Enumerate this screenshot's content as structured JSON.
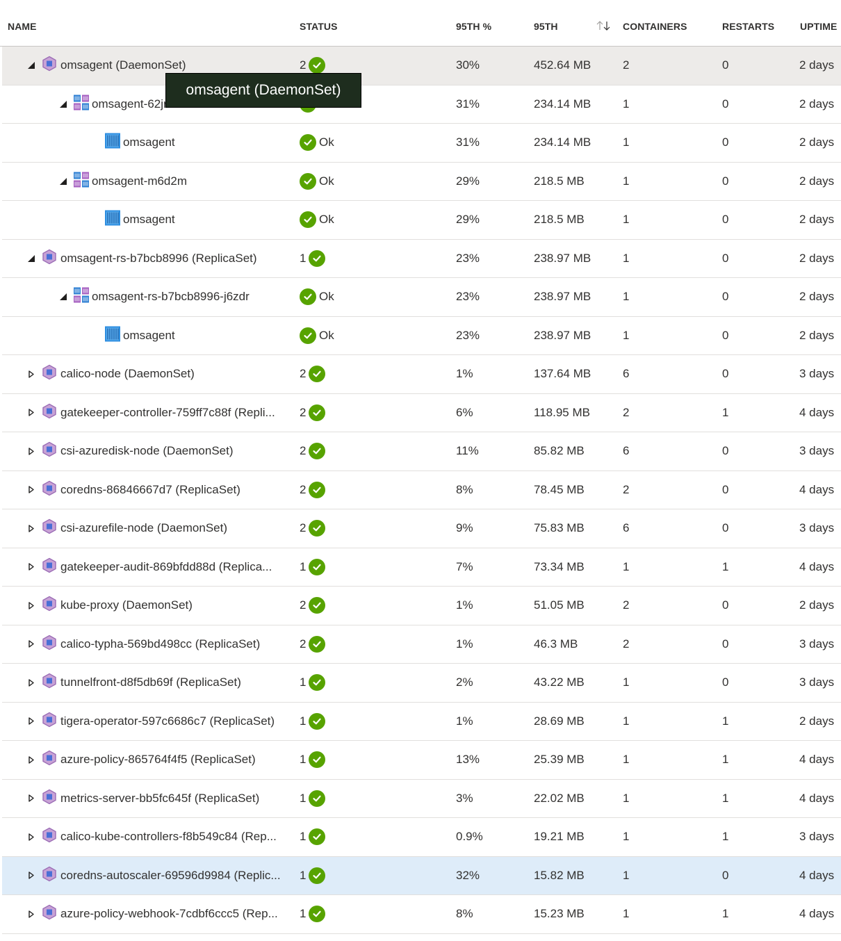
{
  "columns": {
    "name": "NAME",
    "status": "STATUS",
    "p95pct": "95TH %",
    "p95": "95TH",
    "containers": "CONTAINERS",
    "restarts": "RESTARTS",
    "uptime": "UPTIME"
  },
  "tooltip": "omsagent (DaemonSet)",
  "colors": {
    "ok_green": "#57a300",
    "row_hover": "#edebe9",
    "row_selected": "#deecf9",
    "tooltip_bg": "#1e2d1e"
  },
  "rows": [
    {
      "level": 0,
      "expand": "expanded",
      "icon": "controller-icon",
      "name": "omsagent (DaemonSet)",
      "status_count": "2",
      "status_text": "",
      "pct": "30%",
      "mem": "452.64 MB",
      "containers": "2",
      "restarts": "0",
      "uptime": "2 days",
      "state": "hover"
    },
    {
      "level": 1,
      "expand": "expanded",
      "icon": "pod-icon",
      "name": "omsagent-62jrc",
      "status_count": "",
      "status_text": "Ok",
      "pct": "31%",
      "mem": "234.14 MB",
      "containers": "1",
      "restarts": "0",
      "uptime": "2 days",
      "state": ""
    },
    {
      "level": 2,
      "expand": "none",
      "icon": "container-icon",
      "name": "omsagent",
      "status_count": "",
      "status_text": "Ok",
      "pct": "31%",
      "mem": "234.14 MB",
      "containers": "1",
      "restarts": "0",
      "uptime": "2 days",
      "state": ""
    },
    {
      "level": 1,
      "expand": "expanded",
      "icon": "pod-icon",
      "name": "omsagent-m6d2m",
      "status_count": "",
      "status_text": "Ok",
      "pct": "29%",
      "mem": "218.5 MB",
      "containers": "1",
      "restarts": "0",
      "uptime": "2 days",
      "state": ""
    },
    {
      "level": 2,
      "expand": "none",
      "icon": "container-icon",
      "name": "omsagent",
      "status_count": "",
      "status_text": "Ok",
      "pct": "29%",
      "mem": "218.5 MB",
      "containers": "1",
      "restarts": "0",
      "uptime": "2 days",
      "state": ""
    },
    {
      "level": 0,
      "expand": "expanded",
      "icon": "controller-icon",
      "name": "omsagent-rs-b7bcb8996 (ReplicaSet)",
      "status_count": "1",
      "status_text": "",
      "pct": "23%",
      "mem": "238.97 MB",
      "containers": "1",
      "restarts": "0",
      "uptime": "2 days",
      "state": ""
    },
    {
      "level": 1,
      "expand": "expanded",
      "icon": "pod-icon",
      "name": "omsagent-rs-b7bcb8996-j6zdr",
      "status_count": "",
      "status_text": "Ok",
      "pct": "23%",
      "mem": "238.97 MB",
      "containers": "1",
      "restarts": "0",
      "uptime": "2 days",
      "state": ""
    },
    {
      "level": 2,
      "expand": "none",
      "icon": "container-icon",
      "name": "omsagent",
      "status_count": "",
      "status_text": "Ok",
      "pct": "23%",
      "mem": "238.97 MB",
      "containers": "1",
      "restarts": "0",
      "uptime": "2 days",
      "state": ""
    },
    {
      "level": 0,
      "expand": "collapsed",
      "icon": "controller-icon",
      "name": "calico-node (DaemonSet)",
      "status_count": "2",
      "status_text": "",
      "pct": "1%",
      "mem": "137.64 MB",
      "containers": "6",
      "restarts": "0",
      "uptime": "3 days",
      "state": ""
    },
    {
      "level": 0,
      "expand": "collapsed",
      "icon": "controller-icon",
      "name": "gatekeeper-controller-759ff7c88f (Repli...",
      "status_count": "2",
      "status_text": "",
      "pct": "6%",
      "mem": "118.95 MB",
      "containers": "2",
      "restarts": "1",
      "uptime": "4 days",
      "state": ""
    },
    {
      "level": 0,
      "expand": "collapsed",
      "icon": "controller-icon",
      "name": "csi-azuredisk-node (DaemonSet)",
      "status_count": "2",
      "status_text": "",
      "pct": "11%",
      "mem": "85.82 MB",
      "containers": "6",
      "restarts": "0",
      "uptime": "3 days",
      "state": ""
    },
    {
      "level": 0,
      "expand": "collapsed",
      "icon": "controller-icon",
      "name": "coredns-86846667d7 (ReplicaSet)",
      "status_count": "2",
      "status_text": "",
      "pct": "8%",
      "mem": "78.45 MB",
      "containers": "2",
      "restarts": "0",
      "uptime": "4 days",
      "state": ""
    },
    {
      "level": 0,
      "expand": "collapsed",
      "icon": "controller-icon",
      "name": "csi-azurefile-node (DaemonSet)",
      "status_count": "2",
      "status_text": "",
      "pct": "9%",
      "mem": "75.83 MB",
      "containers": "6",
      "restarts": "0",
      "uptime": "3 days",
      "state": ""
    },
    {
      "level": 0,
      "expand": "collapsed",
      "icon": "controller-icon",
      "name": "gatekeeper-audit-869bfdd88d (Replica...",
      "status_count": "1",
      "status_text": "",
      "pct": "7%",
      "mem": "73.34 MB",
      "containers": "1",
      "restarts": "1",
      "uptime": "4 days",
      "state": ""
    },
    {
      "level": 0,
      "expand": "collapsed",
      "icon": "controller-icon",
      "name": "kube-proxy (DaemonSet)",
      "status_count": "2",
      "status_text": "",
      "pct": "1%",
      "mem": "51.05 MB",
      "containers": "2",
      "restarts": "0",
      "uptime": "2 days",
      "state": ""
    },
    {
      "level": 0,
      "expand": "collapsed",
      "icon": "controller-icon",
      "name": "calico-typha-569bd498cc (ReplicaSet)",
      "status_count": "2",
      "status_text": "",
      "pct": "1%",
      "mem": "46.3 MB",
      "containers": "2",
      "restarts": "0",
      "uptime": "3 days",
      "state": ""
    },
    {
      "level": 0,
      "expand": "collapsed",
      "icon": "controller-icon",
      "name": "tunnelfront-d8f5db69f (ReplicaSet)",
      "status_count": "1",
      "status_text": "",
      "pct": "2%",
      "mem": "43.22 MB",
      "containers": "1",
      "restarts": "0",
      "uptime": "3 days",
      "state": ""
    },
    {
      "level": 0,
      "expand": "collapsed",
      "icon": "controller-icon",
      "name": "tigera-operator-597c6686c7 (ReplicaSet)",
      "status_count": "1",
      "status_text": "",
      "pct": "1%",
      "mem": "28.69 MB",
      "containers": "1",
      "restarts": "1",
      "uptime": "2 days",
      "state": ""
    },
    {
      "level": 0,
      "expand": "collapsed",
      "icon": "controller-icon",
      "name": "azure-policy-865764f4f5 (ReplicaSet)",
      "status_count": "1",
      "status_text": "",
      "pct": "13%",
      "mem": "25.39 MB",
      "containers": "1",
      "restarts": "1",
      "uptime": "4 days",
      "state": ""
    },
    {
      "level": 0,
      "expand": "collapsed",
      "icon": "controller-icon",
      "name": "metrics-server-bb5fc645f (ReplicaSet)",
      "status_count": "1",
      "status_text": "",
      "pct": "3%",
      "mem": "22.02 MB",
      "containers": "1",
      "restarts": "1",
      "uptime": "4 days",
      "state": ""
    },
    {
      "level": 0,
      "expand": "collapsed",
      "icon": "controller-icon",
      "name": "calico-kube-controllers-f8b549c84 (Rep...",
      "status_count": "1",
      "status_text": "",
      "pct": "0.9%",
      "mem": "19.21 MB",
      "containers": "1",
      "restarts": "1",
      "uptime": "3 days",
      "state": ""
    },
    {
      "level": 0,
      "expand": "collapsed",
      "icon": "controller-icon",
      "name": "coredns-autoscaler-69596d9984 (Replic...",
      "status_count": "1",
      "status_text": "",
      "pct": "32%",
      "mem": "15.82 MB",
      "containers": "1",
      "restarts": "0",
      "uptime": "4 days",
      "state": "selected"
    },
    {
      "level": 0,
      "expand": "collapsed",
      "icon": "controller-icon",
      "name": "azure-policy-webhook-7cdbf6ccc5 (Rep...",
      "status_count": "1",
      "status_text": "",
      "pct": "8%",
      "mem": "15.23 MB",
      "containers": "1",
      "restarts": "1",
      "uptime": "4 days",
      "state": ""
    }
  ]
}
